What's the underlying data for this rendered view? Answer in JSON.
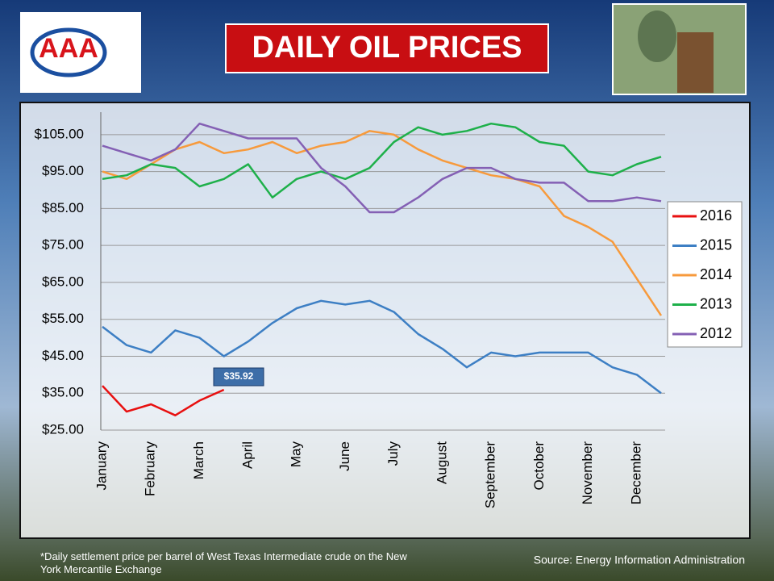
{
  "logo": "AAA",
  "footer": {
    "note": "*Daily settlement price per barrel of West Texas Intermediate crude on the New York Mercantile Exchange",
    "source": "Source: Energy Information  Administration"
  },
  "chart_data": {
    "type": "line",
    "title": "DAILY OIL PRICES",
    "categories": [
      "January",
      null,
      "February",
      null,
      "March",
      null,
      "April",
      null,
      "May",
      null,
      "June",
      null,
      "July",
      null,
      "August",
      null,
      "September",
      null,
      "October",
      null,
      "November",
      null,
      "December",
      null
    ],
    "series": [
      {
        "name": "2016",
        "color": "#e81010",
        "values": [
          37,
          30,
          32,
          29,
          33,
          35.92,
          null,
          null,
          null,
          null,
          null,
          null,
          null,
          null,
          null,
          null,
          null,
          null,
          null,
          null,
          null,
          null,
          null,
          null
        ]
      },
      {
        "name": "2015",
        "color": "#3d7fc4",
        "values": [
          53,
          48,
          46,
          52,
          50,
          45,
          49,
          54,
          58,
          60,
          59,
          60,
          57,
          51,
          47,
          42,
          46,
          45,
          46,
          46,
          46,
          42,
          40,
          35
        ]
      },
      {
        "name": "2014",
        "color": "#f79a3c",
        "values": [
          95,
          93,
          97,
          101,
          103,
          100,
          101,
          103,
          100,
          102,
          103,
          106,
          105,
          101,
          98,
          96,
          94,
          93,
          91,
          83,
          80,
          76,
          66,
          56
        ]
      },
      {
        "name": "2013",
        "color": "#1eb04a",
        "values": [
          93,
          94,
          97,
          96,
          91,
          93,
          97,
          88,
          93,
          95,
          93,
          96,
          103,
          107,
          105,
          106,
          108,
          107,
          103,
          102,
          95,
          94,
          97,
          99
        ]
      },
      {
        "name": "2012",
        "color": "#8460b4",
        "values": [
          102,
          100,
          98,
          101,
          108,
          106,
          104,
          104,
          104,
          96,
          91,
          84,
          84,
          88,
          93,
          96,
          96,
          93,
          92,
          92,
          87,
          87,
          88,
          87
        ]
      }
    ],
    "annotation": "$35.92",
    "ylim": [
      25,
      110
    ],
    "yticks": [
      {
        "value": 25,
        "label": "$25.00"
      },
      {
        "value": 35,
        "label": "$35.00"
      },
      {
        "value": 45,
        "label": "$45.00"
      },
      {
        "value": 55,
        "label": "$55.00"
      },
      {
        "value": 65,
        "label": "$65.00"
      },
      {
        "value": 75,
        "label": "$75.00"
      },
      {
        "value": 85,
        "label": "$85.00"
      },
      {
        "value": 95,
        "label": "$95.00"
      },
      {
        "value": 105,
        "label": "$105.00"
      }
    ],
    "grid": true,
    "legend": "right"
  }
}
